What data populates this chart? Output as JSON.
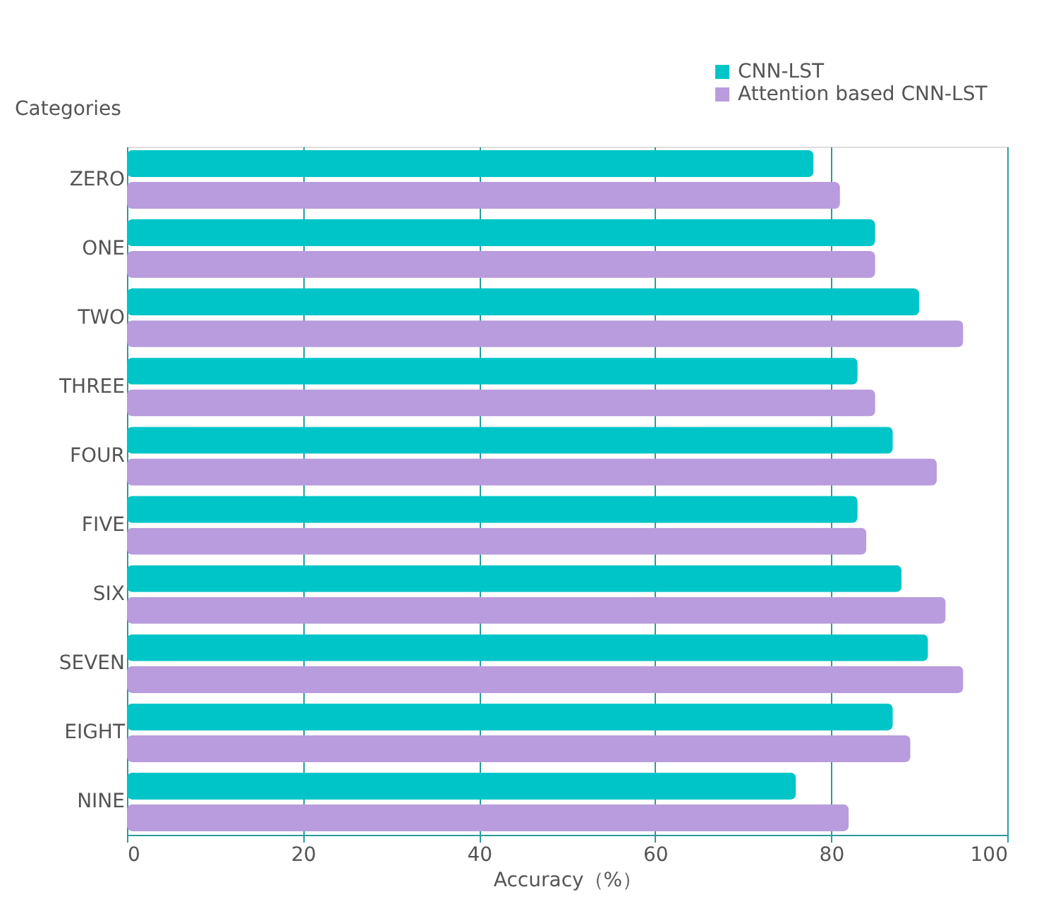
{
  "chart_data": {
    "type": "bar",
    "orientation": "horizontal",
    "xlabel": "Accuracy（%）",
    "ylabel": "Categories",
    "categories": [
      "ZERO",
      "ONE",
      "TWO",
      "THREE",
      "FOUR",
      "FIVE",
      "SIX",
      "SEVEN",
      "EIGHT",
      "NINE"
    ],
    "series": [
      {
        "name": "CNN-LST",
        "color": "#00c5c8",
        "values": [
          78,
          85,
          90,
          83,
          87,
          83,
          88,
          91,
          87,
          76
        ]
      },
      {
        "name": "Attention based CNN-LST",
        "color": "#b99cdd",
        "values": [
          81,
          85,
          95,
          85,
          92,
          84,
          93,
          95,
          89,
          82
        ]
      }
    ],
    "xlim": [
      0,
      100
    ],
    "xticks": [
      0,
      20,
      40,
      60,
      80,
      100
    ],
    "grid": "x",
    "legend": "top right"
  }
}
